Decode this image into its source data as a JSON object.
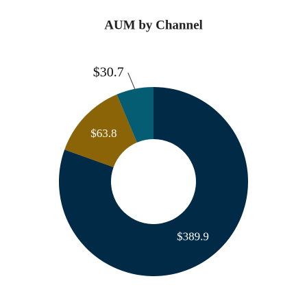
{
  "chart_data": {
    "type": "donut",
    "title": "AUM by Channel",
    "values": [
      389.9,
      63.8,
      30.7
    ],
    "value_labels": [
      "$389.9",
      "$63.8",
      "$30.7"
    ],
    "colors": [
      "#002a45",
      "#8c6408",
      "#045d73"
    ]
  }
}
